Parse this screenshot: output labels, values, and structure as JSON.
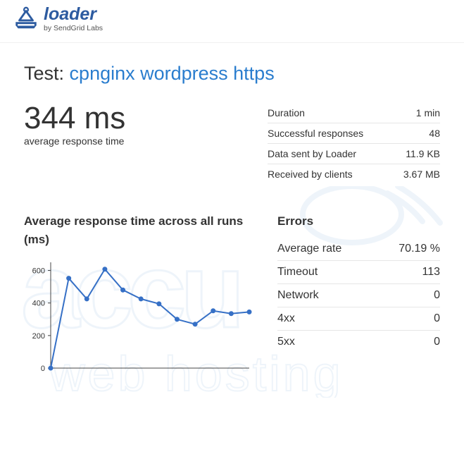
{
  "brand": {
    "name": "loader",
    "sub": "by SendGrid Labs",
    "logo_color": "#2d5ba0"
  },
  "title_prefix": "Test:",
  "title_link": "cpnginx wordpress https",
  "avg_response": {
    "value": "344 ms",
    "label": "average response time"
  },
  "metrics": [
    {
      "label": "Duration",
      "value": "1 min"
    },
    {
      "label": "Successful responses",
      "value": "48"
    },
    {
      "label": "Data sent by Loader",
      "value": "11.9 KB"
    },
    {
      "label": "Received by clients",
      "value": "3.67 MB"
    }
  ],
  "chart": {
    "title": "Average response time across all runs (ms)",
    "type": "line",
    "series": [
      0,
      552,
      425,
      608,
      480,
      425,
      395,
      300,
      270,
      352,
      335,
      345
    ],
    "ylim": [
      0,
      650
    ],
    "yticks": [
      0,
      200,
      400,
      600
    ],
    "line_color": "#3670c6",
    "marker_color": "#3670c6",
    "line_width": 2,
    "marker_radius": 3.5,
    "axis_color": "#444444",
    "tick_label_fontsize": 11,
    "tick_label_color": "#333333",
    "background_color": "#ffffff"
  },
  "errors": {
    "title": "Errors",
    "rows": [
      {
        "label": "Average rate",
        "value": "70.19 %"
      },
      {
        "label": "Timeout",
        "value": "113"
      },
      {
        "label": "Network",
        "value": "0"
      },
      {
        "label": "4xx",
        "value": "0"
      },
      {
        "label": "5xx",
        "value": "0"
      }
    ]
  },
  "watermark_text": "accu web hosting",
  "watermark_color": "#3a7fc4"
}
